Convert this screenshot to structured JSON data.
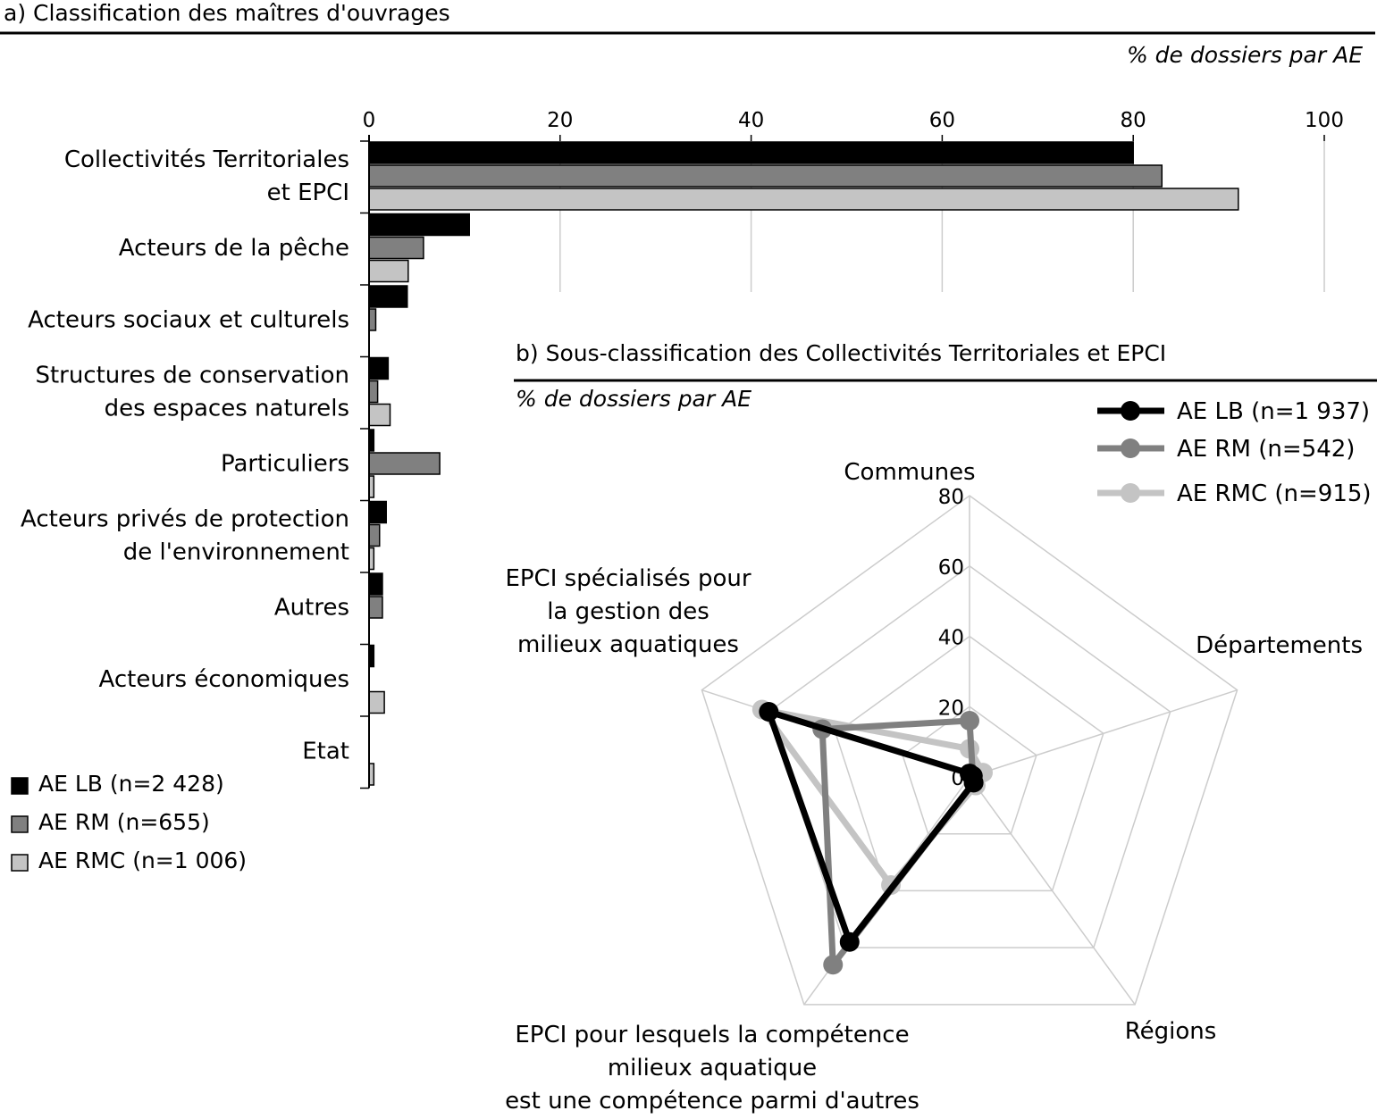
{
  "panel_a": {
    "title": "a) Classification des maîtres d'ouvrages",
    "unit_label": "% de dossiers par AE"
  },
  "panel_b": {
    "title": "b) Sous-classification des Collectivités Territoriales et EPCI",
    "unit_label": "% de dossiers par AE"
  },
  "colors": {
    "lb": "#000000",
    "rm": "#808080",
    "rmc": "#c4c4c4",
    "grid": "#cccccc"
  },
  "chart_data": [
    {
      "type": "bar",
      "orientation": "horizontal",
      "xlim": [
        0,
        100
      ],
      "x_ticks": [
        "0",
        "20",
        "40",
        "60",
        "80",
        "100"
      ],
      "grid": true,
      "legend_position": "bottom-left",
      "categories": [
        [
          "Collectivités Territoriales",
          "et EPCI"
        ],
        [
          "Acteurs de la pêche"
        ],
        [
          "Acteurs sociaux et culturels"
        ],
        [
          "Structures de conservation",
          "des espaces naturels"
        ],
        [
          "Particuliers"
        ],
        [
          "Acteurs privés de protection",
          "de l'environnement"
        ],
        [
          "Autres"
        ],
        [
          "Acteurs économiques"
        ],
        [
          "Etat"
        ]
      ],
      "series": [
        {
          "name": "AE LB (n=2 428)",
          "color": "#000000",
          "values": [
            80,
            10.5,
            4,
            2,
            0.5,
            1.8,
            1.4,
            0.5,
            0
          ]
        },
        {
          "name": "AE RM (n=655)",
          "color": "#808080",
          "values": [
            83,
            5.7,
            0.7,
            0.9,
            7.4,
            1.1,
            1.4,
            0,
            0
          ]
        },
        {
          "name": "AE RMC (n=1 006)",
          "color": "#c4c4c4",
          "values": [
            91,
            4.1,
            0,
            2.2,
            0.5,
            0.5,
            0,
            1.6,
            0.5
          ]
        }
      ]
    },
    {
      "type": "radar",
      "rlim": [
        0,
        80
      ],
      "r_ticks": [
        "0",
        "20",
        "40",
        "60",
        "80"
      ],
      "grid": true,
      "legend_position": "top-right",
      "axes": [
        [
          "Communes"
        ],
        [
          "Départements"
        ],
        [
          "Régions"
        ],
        [
          "EPCI pour lesquels la compétence",
          "milieux aquatique",
          "est une compétence parmi d'autres"
        ],
        [
          "EPCI spécialisés pour",
          "la gestion des",
          "milieux aquatiques"
        ]
      ],
      "series": [
        {
          "name": "AE LB (n=1 937)",
          "color": "#000000",
          "values": [
            1,
            1,
            2,
            58,
            60
          ]
        },
        {
          "name": "AE RM (n=542)",
          "color": "#808080",
          "values": [
            16,
            1,
            2,
            66,
            44
          ]
        },
        {
          "name": "AE RMC (n=915)",
          "color": "#c4c4c4",
          "values": [
            8,
            4,
            3,
            38,
            62
          ]
        }
      ]
    }
  ]
}
